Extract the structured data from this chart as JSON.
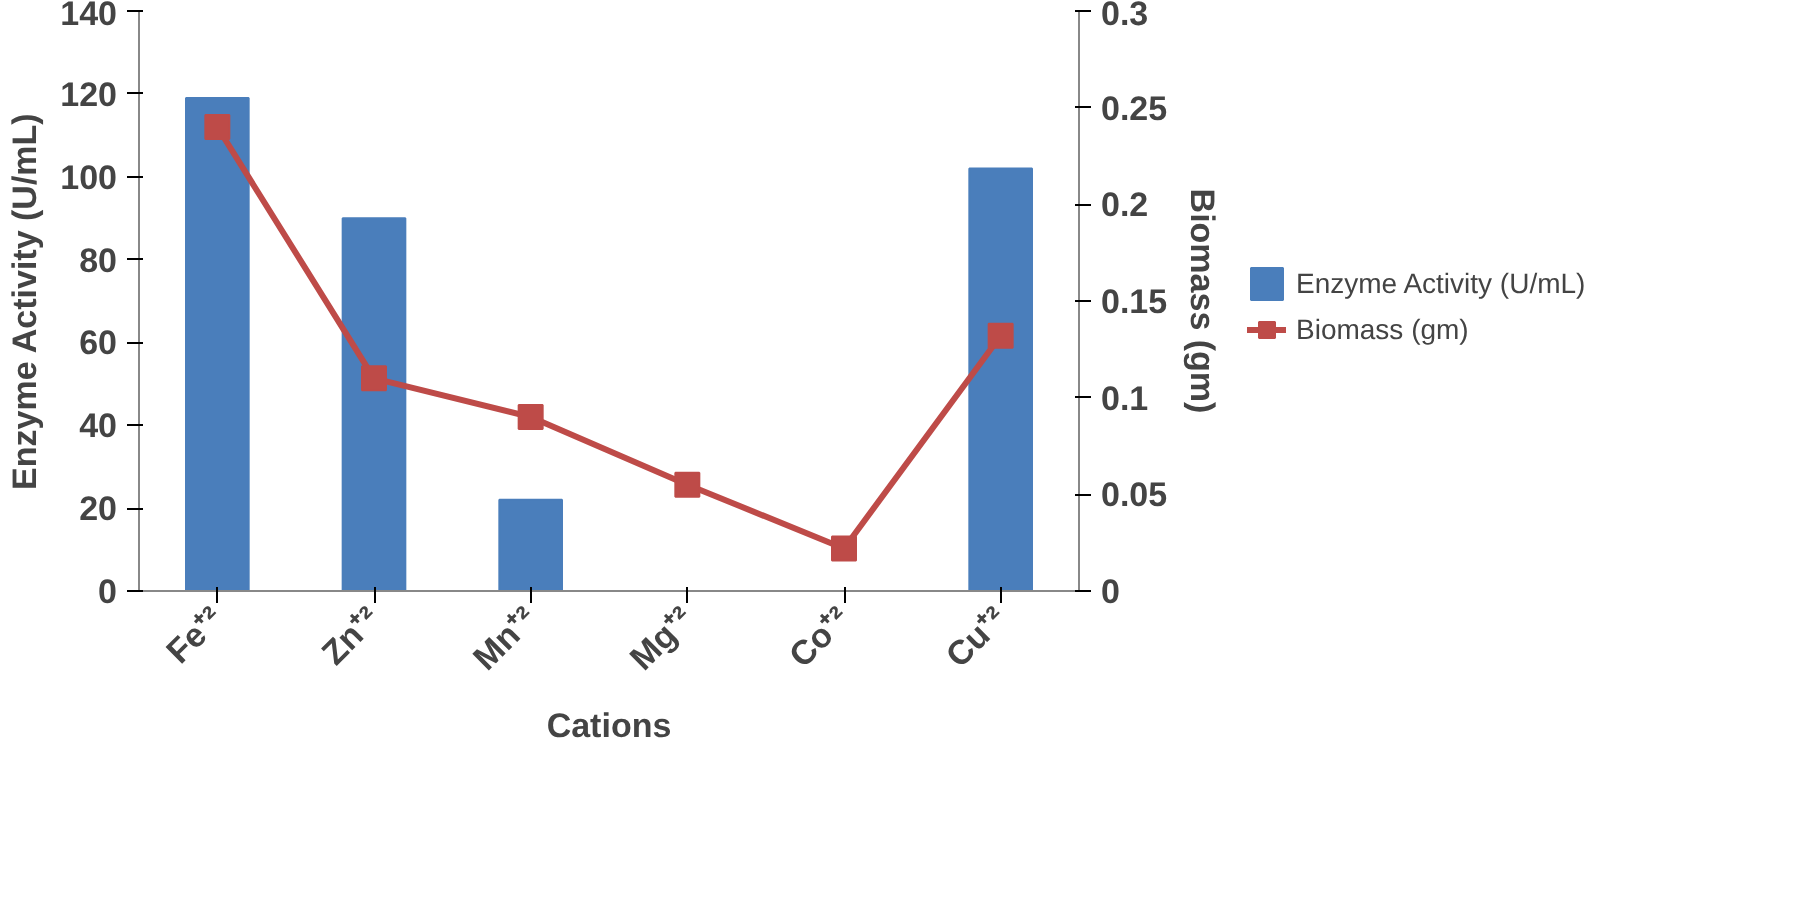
{
  "chart_data": {
    "type": "bar",
    "xlabel": "Cations",
    "ylabel": "Enzyme Activity (U/mL)",
    "y2label": "Biomass (gm)",
    "categories": [
      "Fe⁺²",
      "Zn⁺²",
      "Mn⁺²",
      "Mg⁺²",
      "Co⁺²",
      "Cu⁺²"
    ],
    "series": [
      {
        "name": "Enzyme Activity (U/mL)",
        "color": "#4a7ebb",
        "values": [
          119,
          90,
          22,
          0,
          0,
          102
        ]
      },
      {
        "name": "Biomass (gm)",
        "type": "line",
        "axis": "y2",
        "color": "#be4b48",
        "marker": "square",
        "values": [
          0.24,
          0.11,
          0.09,
          0.055,
          0.022,
          0.132
        ]
      }
    ],
    "ylim": [
      0,
      140
    ],
    "yticks": [
      0,
      20,
      40,
      60,
      80,
      100,
      120,
      140
    ],
    "y2lim": [
      0,
      0.3
    ],
    "y2ticks": [
      0,
      {
        "value": 0.05,
        "label": "0.05"
      },
      {
        "value": 0.1,
        "label": "0.1"
      },
      {
        "value": 0.15,
        "label": "0.15"
      },
      {
        "value": 0.2,
        "label": "0.2"
      },
      {
        "value": 0.25,
        "label": "0.25"
      },
      {
        "value": 0.3,
        "label": "0.3"
      }
    ],
    "grid": false,
    "legend": "right"
  }
}
